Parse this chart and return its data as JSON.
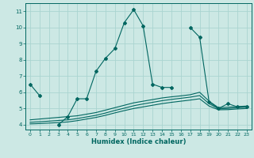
{
  "xlabel": "Humidex (Indice chaleur)",
  "bg_color": "#cce8e4",
  "grid_color": "#aad4d0",
  "line_color": "#006660",
  "xlim": [
    -0.5,
    23.5
  ],
  "ylim": [
    3.7,
    11.5
  ],
  "yticks": [
    4,
    5,
    6,
    7,
    8,
    9,
    10,
    11
  ],
  "xticks": [
    0,
    1,
    2,
    3,
    4,
    5,
    6,
    7,
    8,
    9,
    10,
    11,
    12,
    13,
    14,
    15,
    16,
    17,
    18,
    19,
    20,
    21,
    22,
    23
  ],
  "series1_x": [
    0,
    1,
    3,
    4,
    5,
    6,
    7,
    8,
    9,
    10,
    11,
    12,
    13,
    14,
    15,
    17,
    18,
    19,
    20,
    21,
    22,
    23
  ],
  "series1_y": [
    6.5,
    5.8,
    4.0,
    4.5,
    5.6,
    5.6,
    7.3,
    8.1,
    8.7,
    10.3,
    11.1,
    10.1,
    6.5,
    6.3,
    6.3,
    10.0,
    9.4,
    5.4,
    5.0,
    5.3,
    5.1,
    5.1
  ],
  "series2_x": [
    0,
    1,
    2,
    3,
    4,
    5,
    6,
    7,
    8,
    9,
    10,
    11,
    12,
    13,
    14,
    15,
    16,
    17,
    18,
    19,
    20,
    21,
    22,
    23
  ],
  "series2_y": [
    4.3,
    4.35,
    4.4,
    4.45,
    4.5,
    4.55,
    4.65,
    4.75,
    4.9,
    5.05,
    5.2,
    5.35,
    5.45,
    5.55,
    5.65,
    5.72,
    5.78,
    5.85,
    6.0,
    5.45,
    5.05,
    5.08,
    5.12,
    5.15
  ],
  "series3_x": [
    0,
    1,
    2,
    3,
    4,
    5,
    6,
    7,
    8,
    9,
    10,
    11,
    12,
    13,
    14,
    15,
    16,
    17,
    18,
    19,
    20,
    21,
    22,
    23
  ],
  "series3_y": [
    4.15,
    4.18,
    4.22,
    4.26,
    4.3,
    4.38,
    4.48,
    4.58,
    4.72,
    4.88,
    5.02,
    5.17,
    5.28,
    5.38,
    5.48,
    5.56,
    5.63,
    5.7,
    5.8,
    5.3,
    4.98,
    5.0,
    5.05,
    5.08
  ],
  "series4_x": [
    0,
    1,
    2,
    3,
    4,
    5,
    6,
    7,
    8,
    9,
    10,
    11,
    12,
    13,
    14,
    15,
    16,
    17,
    18,
    19,
    20,
    21,
    22,
    23
  ],
  "series4_y": [
    4.05,
    4.07,
    4.1,
    4.13,
    4.17,
    4.25,
    4.35,
    4.45,
    4.58,
    4.73,
    4.87,
    5.0,
    5.1,
    5.2,
    5.3,
    5.38,
    5.45,
    5.52,
    5.6,
    5.15,
    4.92,
    4.93,
    4.97,
    5.0
  ]
}
